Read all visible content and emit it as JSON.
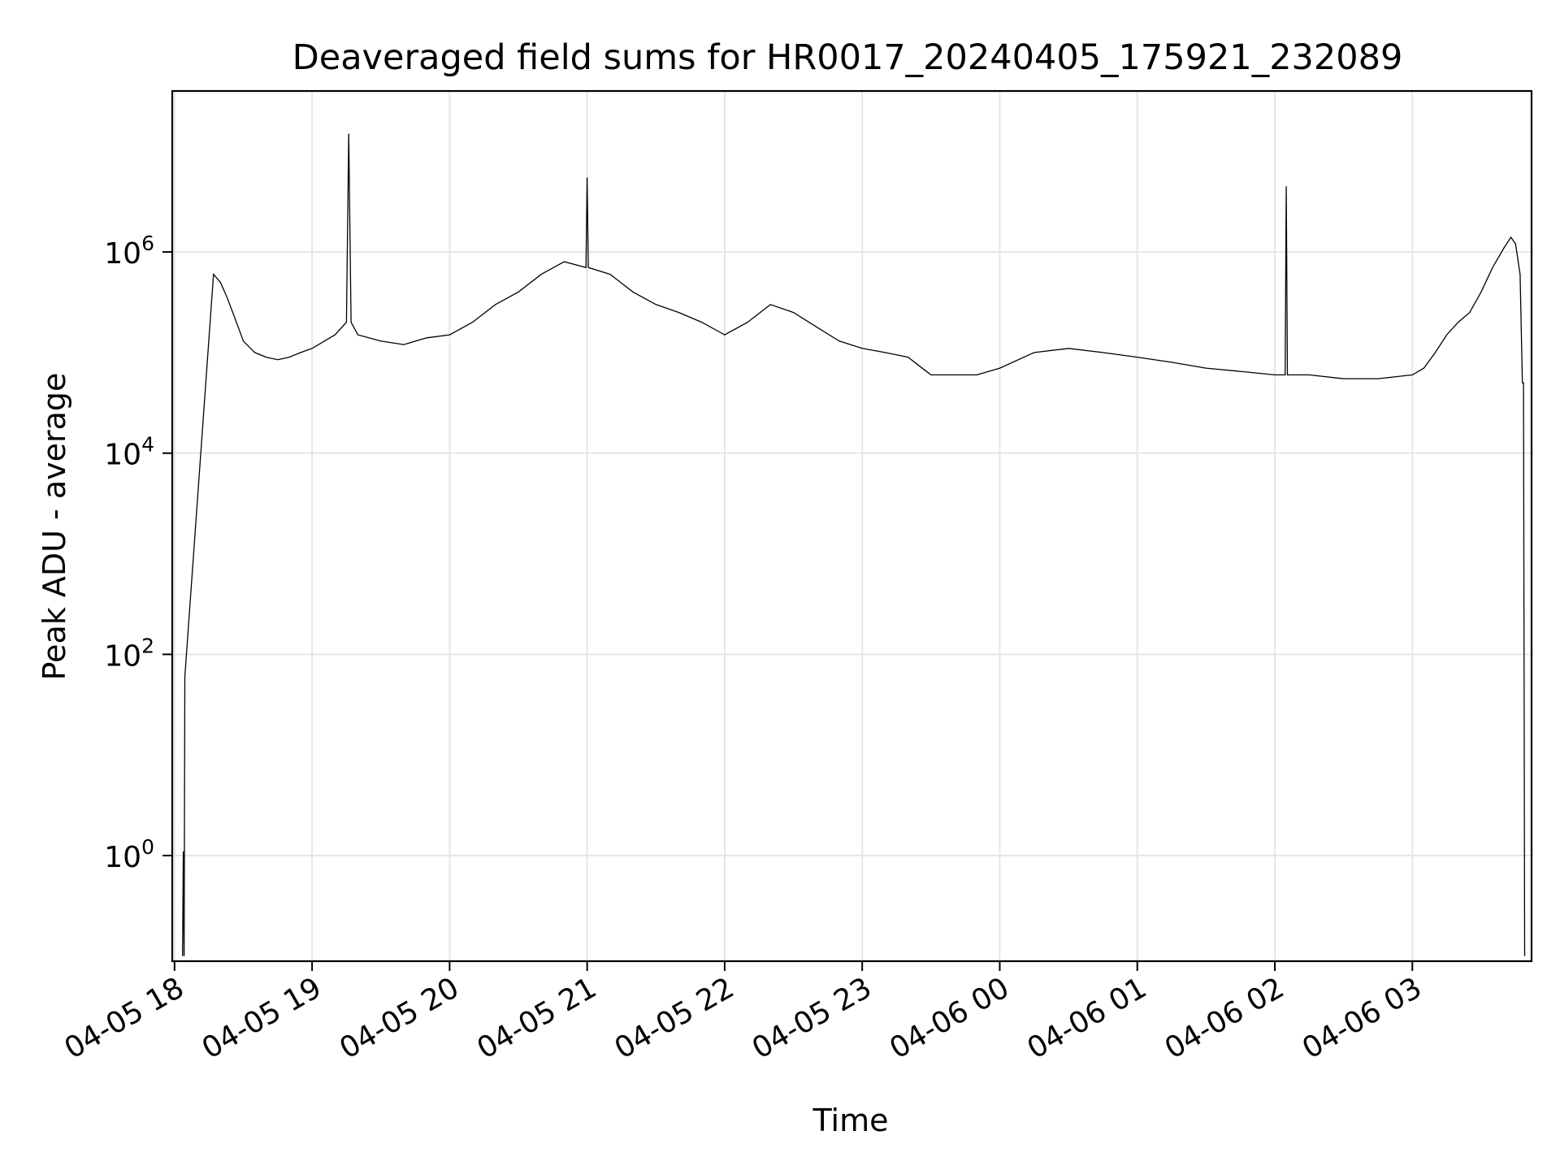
{
  "chart_data": {
    "type": "line",
    "title": "Deaveraged field sums for HR0017_20240405_175921_232089",
    "xlabel": "Time",
    "ylabel": "Peak ADU - average",
    "yscale": "log",
    "grid": true,
    "line_color": "#000000",
    "x_range": [
      "2024-04-05T17:59:00",
      "2024-04-06T03:52:00"
    ],
    "y_range_log10": [
      -1.05,
      7.6
    ],
    "x_ticks": [
      {
        "time": "2024-04-05T18:00",
        "label": "04-05 18"
      },
      {
        "time": "2024-04-05T19:00",
        "label": "04-05 19"
      },
      {
        "time": "2024-04-05T20:00",
        "label": "04-05 20"
      },
      {
        "time": "2024-04-05T21:00",
        "label": "04-05 21"
      },
      {
        "time": "2024-04-05T22:00",
        "label": "04-05 22"
      },
      {
        "time": "2024-04-05T23:00",
        "label": "04-05 23"
      },
      {
        "time": "2024-04-06T00:00",
        "label": "04-06 00"
      },
      {
        "time": "2024-04-06T01:00",
        "label": "04-06 01"
      },
      {
        "time": "2024-04-06T02:00",
        "label": "04-06 02"
      },
      {
        "time": "2024-04-06T03:00",
        "label": "04-06 03"
      }
    ],
    "y_ticks": [
      {
        "exp": 0,
        "base": "10",
        "sup": "0"
      },
      {
        "exp": 2,
        "base": "10",
        "sup": "2"
      },
      {
        "exp": 4,
        "base": "10",
        "sup": "4"
      },
      {
        "exp": 6,
        "base": "10",
        "sup": "6"
      }
    ],
    "series": [
      {
        "x": [
          "2024-04-05T18:03:30",
          "2024-04-05T18:03:50",
          "2024-04-05T18:04:10",
          "2024-04-05T18:04:30",
          "2024-04-05T18:17:00",
          "2024-04-05T18:20:00",
          "2024-04-05T18:23:00",
          "2024-04-05T18:27:00",
          "2024-04-05T18:30:00",
          "2024-04-05T18:35:00",
          "2024-04-05T18:40:00",
          "2024-04-05T18:45:00",
          "2024-04-05T18:50:00",
          "2024-04-05T18:55:00",
          "2024-04-05T19:00:00",
          "2024-04-05T19:10:00",
          "2024-04-05T19:15:00",
          "2024-04-05T19:16:00",
          "2024-04-05T19:17:00",
          "2024-04-05T19:20:00",
          "2024-04-05T19:30:00",
          "2024-04-05T19:40:00",
          "2024-04-05T19:50:00",
          "2024-04-05T20:00:00",
          "2024-04-05T20:10:00",
          "2024-04-05T20:20:00",
          "2024-04-05T20:30:00",
          "2024-04-05T20:40:00",
          "2024-04-05T20:50:00",
          "2024-04-05T20:59:30",
          "2024-04-05T21:00:00",
          "2024-04-05T21:00:30",
          "2024-04-05T21:10:00",
          "2024-04-05T21:20:00",
          "2024-04-05T21:30:00",
          "2024-04-05T21:40:00",
          "2024-04-05T21:50:00",
          "2024-04-05T22:00:00",
          "2024-04-05T22:10:00",
          "2024-04-05T22:20:00",
          "2024-04-05T22:30:00",
          "2024-04-05T22:40:00",
          "2024-04-05T22:50:00",
          "2024-04-05T23:00:00",
          "2024-04-05T23:10:00",
          "2024-04-05T23:20:00",
          "2024-04-05T23:30:00",
          "2024-04-05T23:40:00",
          "2024-04-05T23:50:00",
          "2024-04-06T00:00:00",
          "2024-04-06T00:15:00",
          "2024-04-06T00:30:00",
          "2024-04-06T00:45:00",
          "2024-04-06T01:00:00",
          "2024-04-06T01:15:00",
          "2024-04-06T01:30:00",
          "2024-04-06T01:45:00",
          "2024-04-06T02:00:00",
          "2024-04-06T02:04:30",
          "2024-04-06T02:05:00",
          "2024-04-06T02:05:30",
          "2024-04-06T02:15:00",
          "2024-04-06T02:30:00",
          "2024-04-06T02:45:00",
          "2024-04-06T03:00:00",
          "2024-04-06T03:05:00",
          "2024-04-06T03:10:00",
          "2024-04-06T03:15:00",
          "2024-04-06T03:20:00",
          "2024-04-06T03:25:00",
          "2024-04-06T03:30:00",
          "2024-04-06T03:35:00",
          "2024-04-06T03:40:00",
          "2024-04-06T03:43:00",
          "2024-04-06T03:45:00",
          "2024-04-06T03:47:00",
          "2024-04-06T03:48:00",
          "2024-04-06T03:48:30",
          "2024-04-06T03:49:00"
        ],
        "y": [
          0.1,
          1.1,
          0.1,
          60,
          600000,
          500000,
          350000,
          200000,
          130000,
          100000,
          90000,
          85000,
          90000,
          100000,
          110000,
          150000,
          200000,
          15000000,
          200000,
          150000,
          130000,
          120000,
          140000,
          150000,
          200000,
          300000,
          400000,
          600000,
          800000,
          700000,
          5500000,
          700000,
          600000,
          400000,
          300000,
          250000,
          200000,
          150000,
          200000,
          300000,
          250000,
          180000,
          130000,
          110000,
          100000,
          90000,
          60000,
          60000,
          60000,
          70000,
          100000,
          110000,
          100000,
          90000,
          80000,
          70000,
          65000,
          60000,
          60000,
          4500000,
          60000,
          60000,
          55000,
          55000,
          60000,
          70000,
          100000,
          150000,
          200000,
          250000,
          400000,
          700000,
          1100000,
          1400000,
          1200000,
          600000,
          50000,
          50000,
          0.1
        ]
      }
    ]
  }
}
